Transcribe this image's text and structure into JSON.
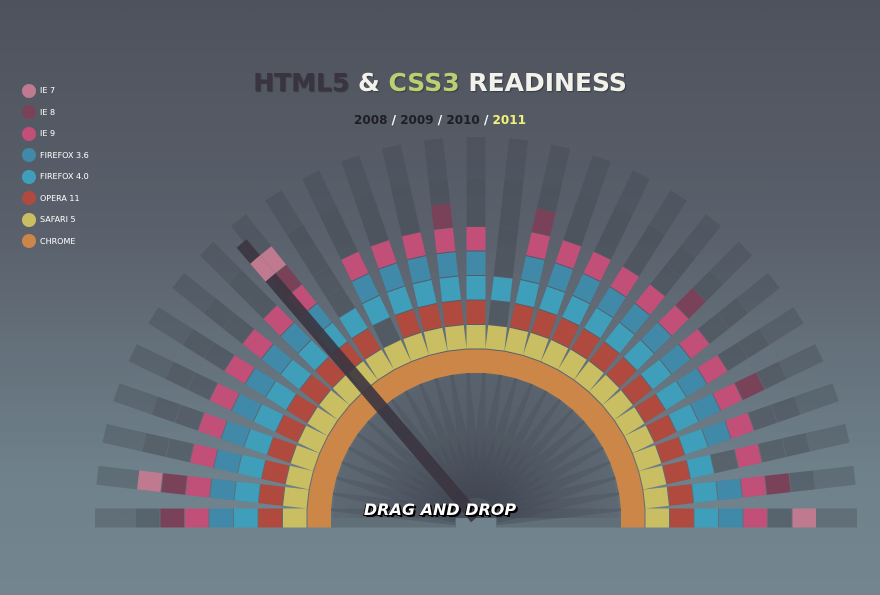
{
  "header": {
    "title_html5": "HTML5",
    "title_amp": "&",
    "title_css3": "CSS3",
    "title_rest": "READINESS",
    "years": [
      "2008",
      "2009",
      "2010",
      "2011"
    ],
    "selected_year": "2011",
    "separator": "/"
  },
  "hint": "DRAG AND DROP",
  "colors": {
    "IE 7": "#c07a8f",
    "IE 8": "#7a4258",
    "IE 9": "#c24f78",
    "FIREFOX 3.6": "#4189a8",
    "FIREFOX 4.0": "#3f9fbb",
    "OPERA 11": "#b04a3e",
    "SAFARI 5": "#c9bf62",
    "CHROME": "#cc8748"
  },
  "chart_data": {
    "type": "radial-bar",
    "browsers": [
      "IE 7",
      "IE 8",
      "IE 9",
      "FIREFOX 3.6",
      "FIREFOX 4.0",
      "OPERA 11",
      "SAFARI 5",
      "CHROME"
    ],
    "feature_count": 29,
    "support_by_browser": {
      "CHROME": [
        1,
        1,
        1,
        1,
        1,
        1,
        1,
        1,
        1,
        1,
        1,
        1,
        1,
        1,
        1,
        1,
        1,
        1,
        1,
        1,
        1,
        1,
        1,
        1,
        1,
        1,
        1,
        1,
        1
      ],
      "SAFARI 5": [
        1,
        1,
        1,
        1,
        1,
        1,
        1,
        1,
        1,
        1,
        1,
        1,
        1,
        1,
        1,
        1,
        1,
        1,
        1,
        1,
        1,
        1,
        1,
        1,
        1,
        1,
        1,
        1,
        1
      ],
      "OPERA 11": [
        1,
        1,
        1,
        1,
        1,
        1,
        1,
        1,
        1,
        1,
        0,
        1,
        1,
        1,
        1,
        0,
        1,
        1,
        1,
        1,
        1,
        1,
        1,
        1,
        1,
        1,
        1,
        1,
        1
      ],
      "FIREFOX 4.0": [
        1,
        1,
        1,
        1,
        1,
        1,
        1,
        1,
        1,
        1,
        1,
        1,
        1,
        1,
        1,
        1,
        1,
        1,
        1,
        1,
        1,
        1,
        1,
        1,
        1,
        1,
        1,
        1,
        1
      ],
      "FIREFOX 3.6": [
        1,
        1,
        1,
        1,
        1,
        1,
        1,
        1,
        1,
        0,
        1,
        1,
        1,
        1,
        1,
        0,
        1,
        1,
        1,
        1,
        1,
        1,
        1,
        1,
        1,
        1,
        0,
        1,
        1
      ],
      "IE 9": [
        1,
        1,
        1,
        1,
        1,
        1,
        1,
        1,
        1,
        0,
        1,
        1,
        1,
        1,
        1,
        0,
        1,
        1,
        1,
        1,
        1,
        1,
        1,
        1,
        1,
        1,
        1,
        1,
        1
      ],
      "IE 8": [
        1,
        1,
        0,
        0,
        0,
        0,
        0,
        0,
        1,
        0,
        0,
        0,
        0,
        1,
        0,
        0,
        1,
        0,
        0,
        0,
        0,
        1,
        0,
        0,
        1,
        0,
        0,
        1,
        0
      ],
      "IE 7": [
        0,
        1,
        0,
        0,
        0,
        0,
        0,
        0,
        1,
        0,
        0,
        0,
        0,
        0,
        0,
        0,
        0,
        0,
        0,
        0,
        0,
        0,
        0,
        0,
        0,
        0,
        0,
        0,
        1
      ]
    }
  }
}
